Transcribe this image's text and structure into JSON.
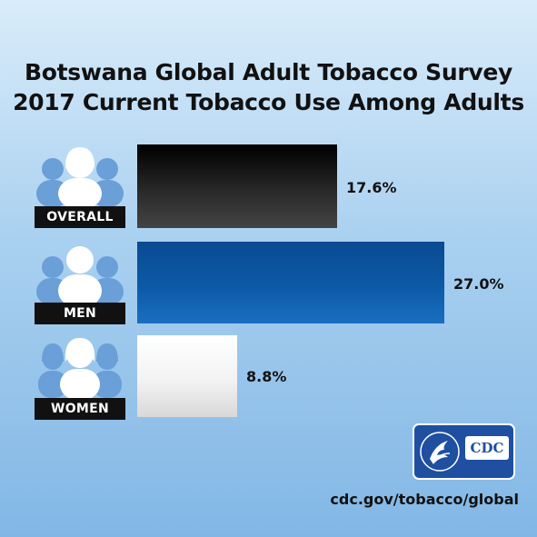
{
  "chart_data": {
    "type": "bar",
    "orientation": "horizontal",
    "title": "Botswana Global Adult Tobacco Survey",
    "subtitle": "2017 Current Tobacco Use Among Adults",
    "categories": [
      "OVERALL",
      "MEN",
      "WOMEN"
    ],
    "values": [
      17.6,
      27.0,
      8.8
    ],
    "value_labels": [
      "17.6%",
      "27.0%",
      "8.8%"
    ],
    "bar_colors": [
      "#1a1a1a",
      "#0c5aa6",
      "#f0f0f0"
    ],
    "xlim": [
      0,
      27.0
    ],
    "grid": false,
    "legend": "none"
  },
  "icons": [
    "people-group-icon",
    "man-icon",
    "woman-icon"
  ],
  "logo": {
    "text": "CDC",
    "color": "#1f4fa1"
  },
  "footer": {
    "url": "cdc.gov/tobacco/global"
  }
}
